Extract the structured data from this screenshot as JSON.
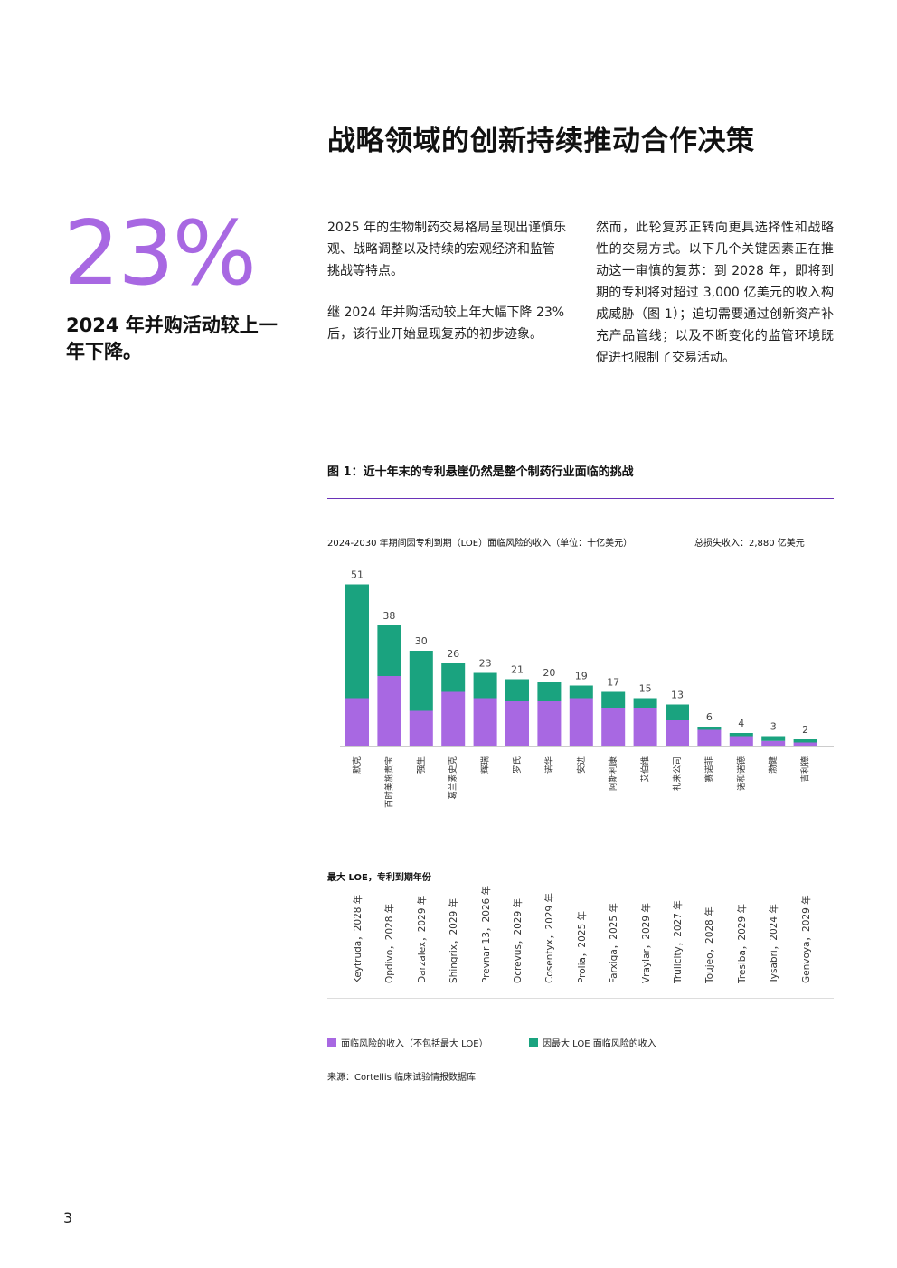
{
  "page": {
    "title": "战略领域的创新持续推动合作决策",
    "big_stat": "23%",
    "big_stat_desc": "2024 年并购活动较上一年下降。",
    "paragraphs_left": [
      "2025 年的生物制药交易格局呈现出谨慎乐观、战略调整以及持续的宏观经济和监管挑战等特点。",
      "继 2024 年并购活动较上年大幅下降 23% 后，该行业开始显现复苏的初步迹象。"
    ],
    "paragraphs_right": [
      "然而，此轮复苏正转向更具选择性和战略性的交易方式。以下几个关键因素正在推动这一审慎的复苏：到 2028 年，即将到期的专利将对超过 3,000 亿美元的收入构成威胁（图 1）；迫切需要通过创新资产补充产品管线；以及不断变化的监管环境既促进也限制了交易活动。"
    ],
    "figure_title": "图 1：近十年末的专利悬崖仍然是整个制药行业面临的挑战",
    "chart_subtitle": "2024-2030 年期间因专利到期（LOE）面临风险的收入（单位：十亿美元）",
    "chart_total": "总损失收入：2,880 亿美元",
    "loe_heading": "最大 LOE，专利到期年份",
    "source": "来源：Cortellis 临床试验情报数据库",
    "page_number": "3"
  },
  "colors": {
    "purple": "#a868e2",
    "green": "#1aa37f",
    "rule": "#6a33b8"
  },
  "chart_data": {
    "type": "bar",
    "stacked": true,
    "categories": [
      "默克",
      "百时美施贵宝",
      "强生",
      "葛兰素史克",
      "辉瑞",
      "罗氏",
      "诺华",
      "安进",
      "阿斯利康",
      "艾伯维",
      "礼来公司",
      "赛诺菲",
      "诺和诺德",
      "渤健",
      "吉利德"
    ],
    "totals": [
      51,
      38,
      30,
      26,
      23,
      21,
      20,
      19,
      17,
      15,
      13,
      6,
      4,
      3,
      2
    ],
    "series": [
      {
        "name": "面临风险的收入（不包括最大 LOE）",
        "color": "#a868e2",
        "values": [
          15,
          22,
          11,
          17,
          15,
          14,
          14,
          15,
          12,
          12,
          8,
          5,
          3,
          1.5,
          1
        ]
      },
      {
        "name": "因最大 LOE 面临风险的收入",
        "color": "#1aa37f",
        "values": [
          36,
          16,
          19,
          9,
          8,
          7,
          6,
          4,
          5,
          3,
          5,
          1,
          1,
          1.5,
          1
        ]
      }
    ],
    "largest_loe": [
      "Keytruda，2028 年",
      "Opdivo，2028 年",
      "Darzalex，2029 年",
      "Shingrix，2029 年",
      "Prevnar 13，2026 年",
      "Ocrevus，2029 年",
      "Cosentyx，2029 年",
      "Prolia，2025 年",
      "Farxiga，2025 年",
      "Vraylar，2029 年",
      "Trulicity，2027 年",
      "Toujeo，2028 年",
      "Tresiba，2029 年",
      "Tysabri，2024 年",
      "Genvoya，2029 年"
    ],
    "ylim": [
      0,
      55
    ],
    "grid": false,
    "legend_placement": "bottom"
  }
}
